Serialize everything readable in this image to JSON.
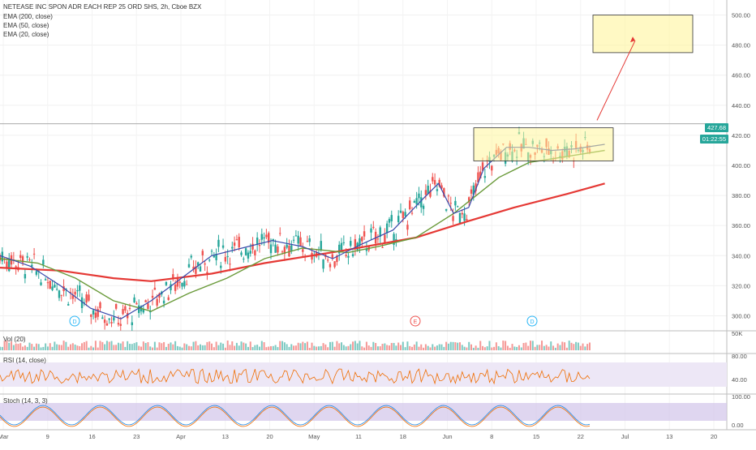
{
  "header": {
    "title": "NETEASE INC SPON ADR EACH REP 25 ORD SHS, 2h, Cboe BZX",
    "legends": [
      "EMA (200, close)",
      "EMA (50, close)",
      "EMA (20, close)"
    ]
  },
  "price_tags": {
    "last_price": "427.68",
    "countdown": "01:22:55"
  },
  "indicators": {
    "vol_label": "Vol (20)",
    "rsi_label": "RSI (14, close)",
    "stoch_label": "Stoch (14, 3, 3)"
  },
  "markers": [
    {
      "letter": "D",
      "x_label": "Mar 12"
    },
    {
      "letter": "E",
      "x_label": "May 20"
    },
    {
      "letter": "D",
      "x_label": "Jun 11"
    }
  ],
  "colors": {
    "up": "#26a69a",
    "down": "#ef5350",
    "ema200": "#e53935",
    "ema50": "#6a9a3a",
    "ema20": "#3949ab",
    "box": "#fff59d",
    "rsi_bg": "#ede7f6",
    "stoch_bg": "#d1c4e9"
  },
  "chart_data": {
    "type": "line",
    "x_ticks": [
      "Mar",
      "9",
      "16",
      "23",
      "Apr",
      "13",
      "20",
      "May",
      "11",
      "18",
      "Jun",
      "8",
      "15",
      "22",
      "Jul",
      "13",
      "20"
    ],
    "price_axis": {
      "ticks": [
        300,
        320,
        340,
        360,
        380,
        400,
        420,
        440,
        460,
        480,
        500
      ],
      "ylim": [
        290,
        510
      ]
    },
    "vol_axis": {
      "ticks": [
        "50K"
      ]
    },
    "rsi_axis": {
      "ticks": [
        "80.00",
        "40.00"
      ]
    },
    "stoch_axis": {
      "ticks": [
        "100.00",
        "0.00"
      ]
    },
    "series": [
      {
        "name": "EMA (200, close)",
        "points": [
          [
            0,
            332
          ],
          [
            0.08,
            330
          ],
          [
            0.15,
            325
          ],
          [
            0.2,
            323
          ],
          [
            0.28,
            328
          ],
          [
            0.35,
            335
          ],
          [
            0.45,
            343
          ],
          [
            0.55,
            352
          ],
          [
            0.62,
            363
          ],
          [
            0.68,
            372
          ],
          [
            0.75,
            381
          ],
          [
            0.8,
            388
          ]
        ]
      },
      {
        "name": "EMA (50, close)",
        "points": [
          [
            0,
            338
          ],
          [
            0.05,
            335
          ],
          [
            0.1,
            325
          ],
          [
            0.15,
            310
          ],
          [
            0.2,
            303
          ],
          [
            0.25,
            315
          ],
          [
            0.3,
            325
          ],
          [
            0.35,
            338
          ],
          [
            0.4,
            345
          ],
          [
            0.46,
            342
          ],
          [
            0.5,
            346
          ],
          [
            0.55,
            352
          ],
          [
            0.6,
            368
          ],
          [
            0.63,
            380
          ],
          [
            0.66,
            392
          ],
          [
            0.7,
            402
          ],
          [
            0.75,
            406
          ],
          [
            0.8,
            410
          ]
        ]
      },
      {
        "name": "EMA (20, close)",
        "points": [
          [
            0,
            340
          ],
          [
            0.04,
            333
          ],
          [
            0.08,
            320
          ],
          [
            0.12,
            305
          ],
          [
            0.16,
            298
          ],
          [
            0.2,
            310
          ],
          [
            0.24,
            325
          ],
          [
            0.28,
            340
          ],
          [
            0.32,
            345
          ],
          [
            0.36,
            350
          ],
          [
            0.4,
            346
          ],
          [
            0.44,
            338
          ],
          [
            0.48,
            348
          ],
          [
            0.52,
            357
          ],
          [
            0.56,
            378
          ],
          [
            0.58,
            388
          ],
          [
            0.6,
            368
          ],
          [
            0.62,
            372
          ],
          [
            0.64,
            398
          ],
          [
            0.67,
            412
          ],
          [
            0.7,
            412
          ],
          [
            0.73,
            410
          ],
          [
            0.76,
            411
          ],
          [
            0.8,
            414
          ]
        ]
      }
    ],
    "annotations": [
      {
        "type": "consolidation-box",
        "y_top": 425,
        "y_bottom": 403
      },
      {
        "type": "target-box",
        "y_top": 500,
        "y_bottom": 475
      },
      {
        "type": "arrow",
        "from_y": 430,
        "to_y": 483
      }
    ],
    "last_price": 427.68
  }
}
